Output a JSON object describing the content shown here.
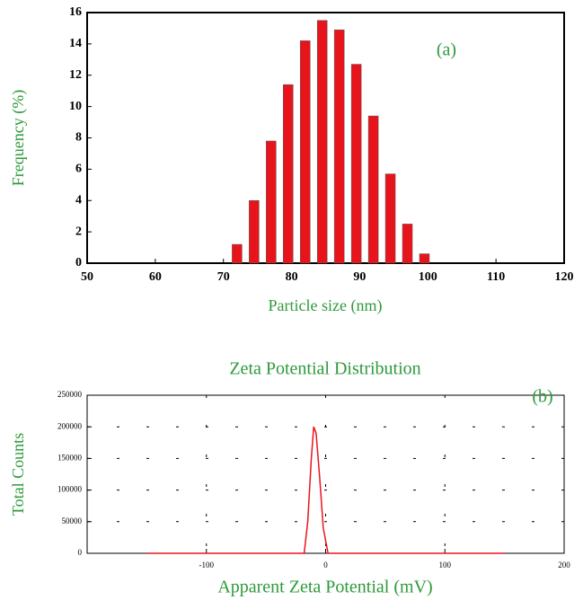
{
  "chart_data": [
    {
      "type": "bar",
      "annotation": "(a)",
      "x_label": "Particle size (nm)",
      "y_label": "Frequency (%)",
      "x": [
        72,
        74.5,
        77,
        79.5,
        82,
        84.5,
        87,
        89.5,
        92,
        94.5,
        97,
        99.5
      ],
      "values": [
        1.2,
        4.0,
        7.8,
        11.4,
        14.2,
        15.5,
        14.9,
        12.7,
        9.4,
        5.7,
        2.5,
        0.6
      ],
      "color": "#e8141c",
      "xlim": [
        50,
        120
      ],
      "xticks": [
        50,
        60,
        70,
        80,
        90,
        100,
        110,
        120
      ],
      "ylim": [
        0,
        16
      ],
      "yticks": [
        0,
        2,
        4,
        6,
        8,
        10,
        12,
        14,
        16
      ],
      "grid": false
    },
    {
      "type": "line",
      "title": "Zeta Potential Distribution",
      "annotation": "(b)",
      "x_label": "Apparent Zeta Potential (mV)",
      "y_label": "Total Counts",
      "x": [
        -150,
        -18,
        -15,
        -12,
        -10,
        -8,
        -5,
        -2,
        2,
        150
      ],
      "values": [
        0,
        0,
        50000,
        150000,
        200000,
        190000,
        120000,
        40000,
        0,
        0
      ],
      "color": "#e8141c",
      "xlim": [
        -200,
        200
      ],
      "xticks": [
        -100,
        0,
        100,
        200
      ],
      "ylim": [
        0,
        250000
      ],
      "yticks": [
        0,
        50000,
        100000,
        150000,
        200000,
        250000
      ],
      "grid": true
    }
  ]
}
